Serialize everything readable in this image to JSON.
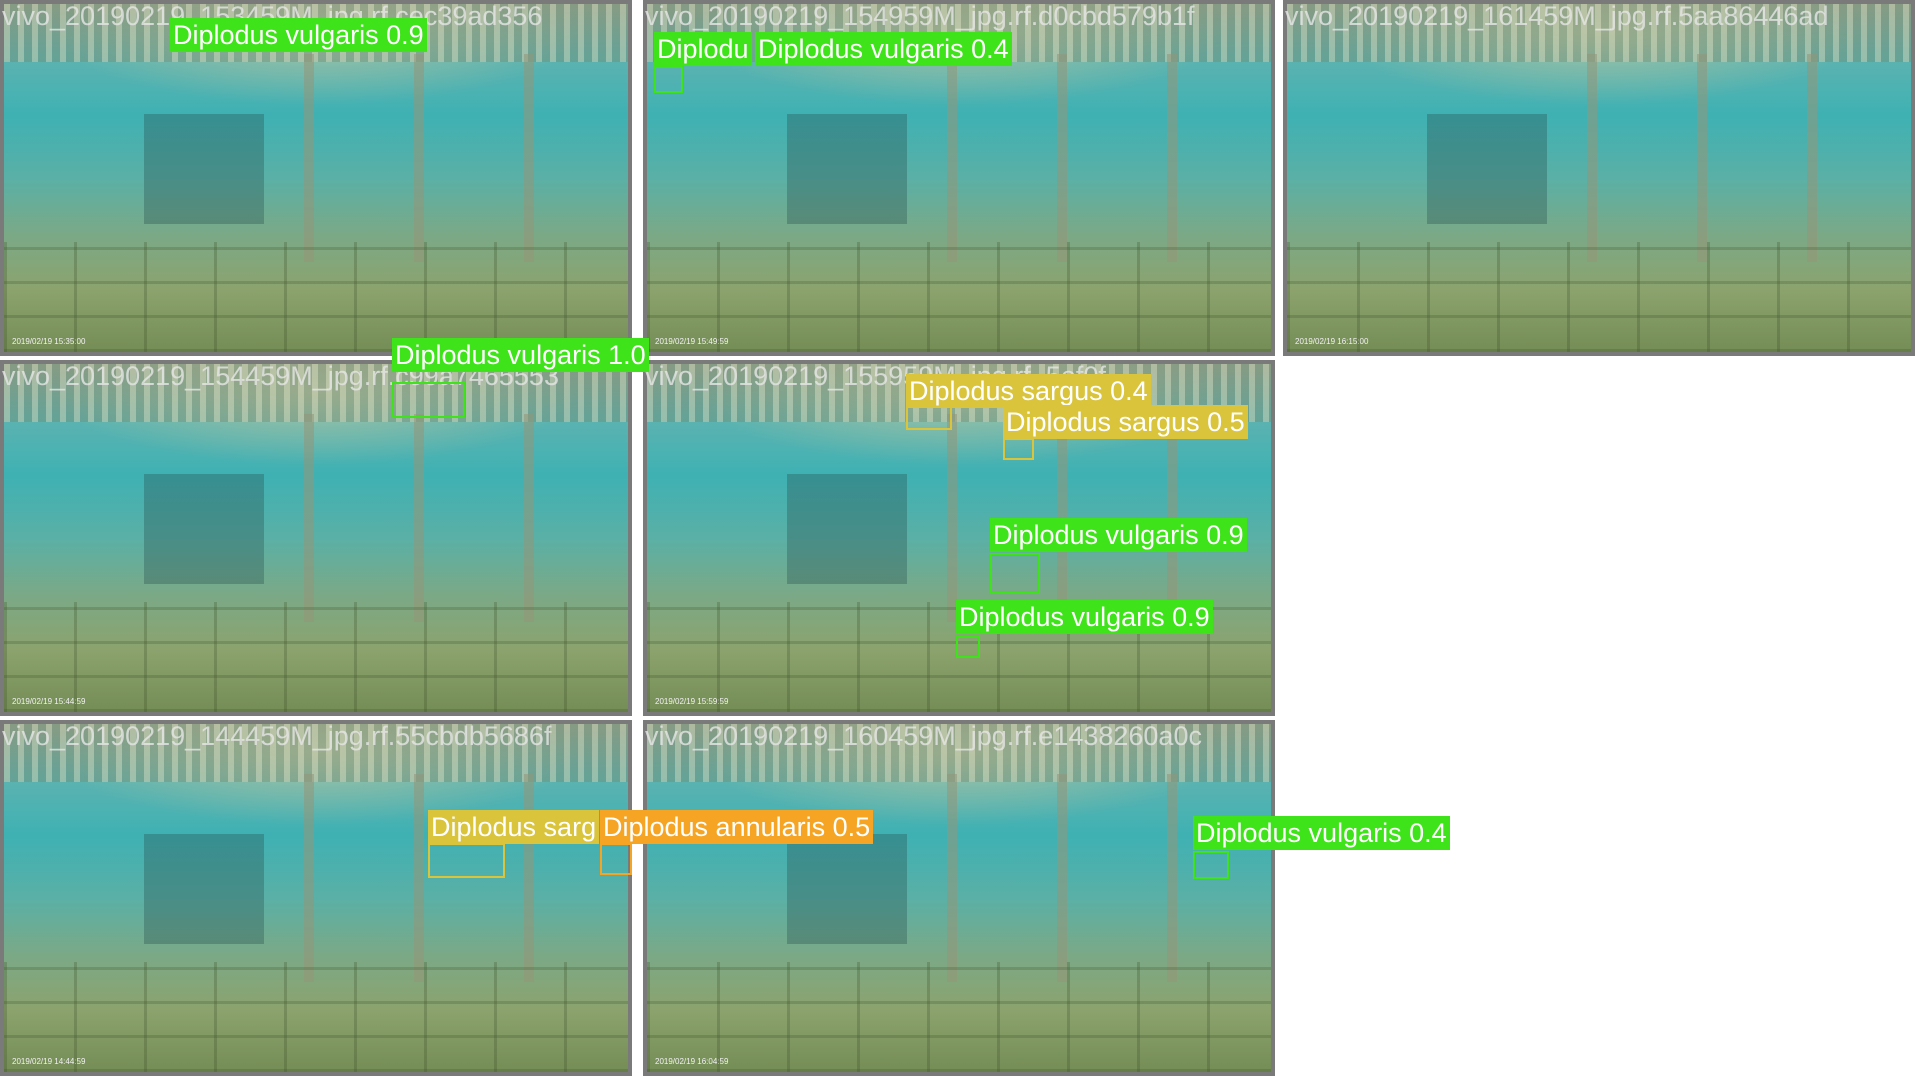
{
  "colors": {
    "vulgaris": "#3fe31a",
    "sargus": "#d9c43c",
    "annularis": "#f5a523"
  },
  "tiles": [
    {
      "caption": "vivo_20190219_153459M_jpg.rf.cec39ad356",
      "timestamp": "2019/02/19 15:35:00"
    },
    {
      "caption": "vivo_20190219_154959M_jpg.rf.d0cbd579b1f",
      "timestamp": "2019/02/19 15:49:59"
    },
    {
      "caption": "vivo_20190219_161459M_jpg.rf.5aa86446ad",
      "timestamp": "2019/02/19 16:15:00"
    },
    {
      "caption": "vivo_20190219_154459M_jpg.rf.c99a7465553",
      "timestamp": "2019/02/19 15:44:59"
    },
    {
      "caption": "vivo_20190219_155959M_jpg.rf.            5ef0f",
      "timestamp": "2019/02/19 15:59:59"
    },
    {
      "caption": "vivo_20190219_144459M_jpg.rf.55cbdb5686f",
      "timestamp": "2019/02/19 14:44:59"
    },
    {
      "caption": "vivo_20190219_160459M_jpg.rf.e1438260a0c",
      "timestamp": "2019/02/19 16:04:59"
    }
  ],
  "detections": [
    {
      "label": "Diplodus vulgaris 0.9",
      "species": "vulgaris"
    },
    {
      "label": "Diplodu",
      "species": "vulgaris"
    },
    {
      "label": "Diplodus vulgaris 0.4",
      "species": "vulgaris"
    },
    {
      "label": "Diplodus vulgaris 1.0",
      "species": "vulgaris"
    },
    {
      "label": "Diplodus sargus 0.4",
      "species": "sargus"
    },
    {
      "label": "Diplodus sargus 0.5",
      "species": "sargus"
    },
    {
      "label": "Diplodus vulgaris 0.9",
      "species": "vulgaris"
    },
    {
      "label": "Diplodus vulgaris 0.9",
      "species": "vulgaris"
    },
    {
      "label": "Diplodus sarg",
      "species": "sargus"
    },
    {
      "label": "Diplodus annularis 0.5",
      "species": "annularis"
    },
    {
      "label": "Diplodus vulgaris 0.4",
      "species": "vulgaris"
    }
  ]
}
